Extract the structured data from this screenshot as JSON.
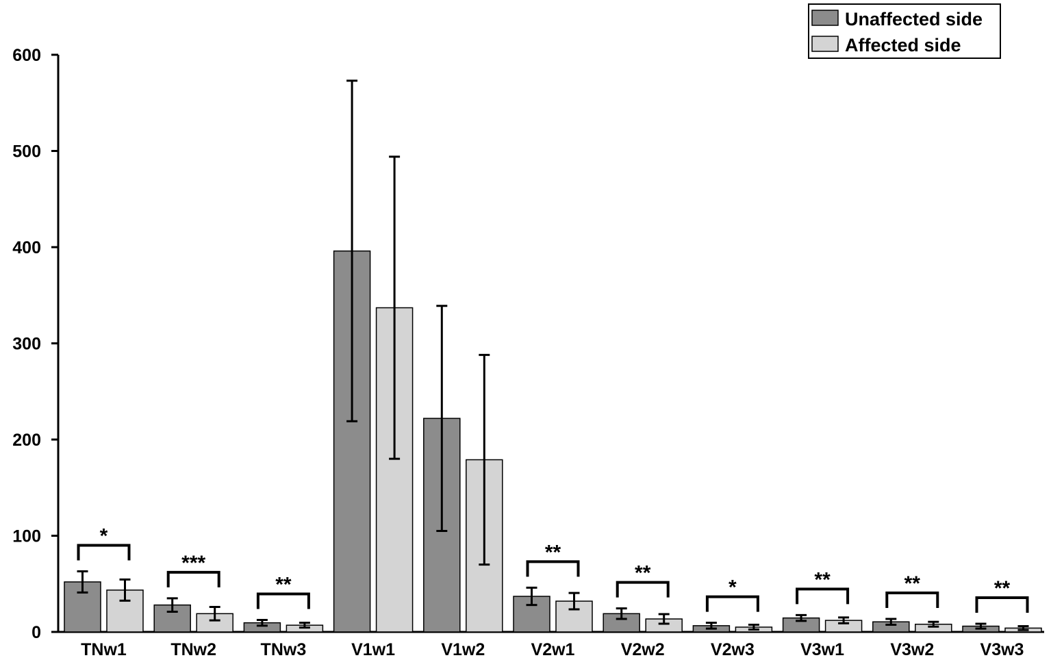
{
  "chart_data": {
    "type": "bar",
    "title": "",
    "xlabel": "",
    "ylabel": "",
    "ylim": [
      0,
      600
    ],
    "yticks": [
      "0",
      "100",
      "200",
      "300",
      "400",
      "500",
      "600"
    ],
    "categories": [
      "TNw1",
      "TNw2",
      "TNw3",
      "V1w1",
      "V1w2",
      "V2w1",
      "V2w2",
      "V2w3",
      "V3w1",
      "V3w2",
      "V3w3"
    ],
    "series": [
      {
        "name": "Unaffected side",
        "color": "#8c8c8c",
        "values": [
          52,
          28,
          9.5,
          396,
          222,
          37,
          19,
          6.5,
          14.5,
          10.5,
          6
        ],
        "error": [
          11,
          7,
          3,
          177,
          117,
          9,
          5.5,
          3,
          3,
          3,
          2.5
        ]
      },
      {
        "name": "Affected side",
        "color": "#d4d4d4",
        "values": [
          43.5,
          19,
          7,
          337,
          179,
          32,
          13.5,
          5,
          12,
          8,
          4
        ],
        "error": [
          11,
          7,
          2.5,
          157,
          109,
          8.5,
          5,
          2.5,
          3,
          2.5,
          2
        ]
      }
    ],
    "significance": [
      "*",
      "***",
      "**",
      "",
      "",
      "**",
      "**",
      "*",
      "**",
      "**",
      "**"
    ],
    "grid": false,
    "legend": "top-right"
  }
}
